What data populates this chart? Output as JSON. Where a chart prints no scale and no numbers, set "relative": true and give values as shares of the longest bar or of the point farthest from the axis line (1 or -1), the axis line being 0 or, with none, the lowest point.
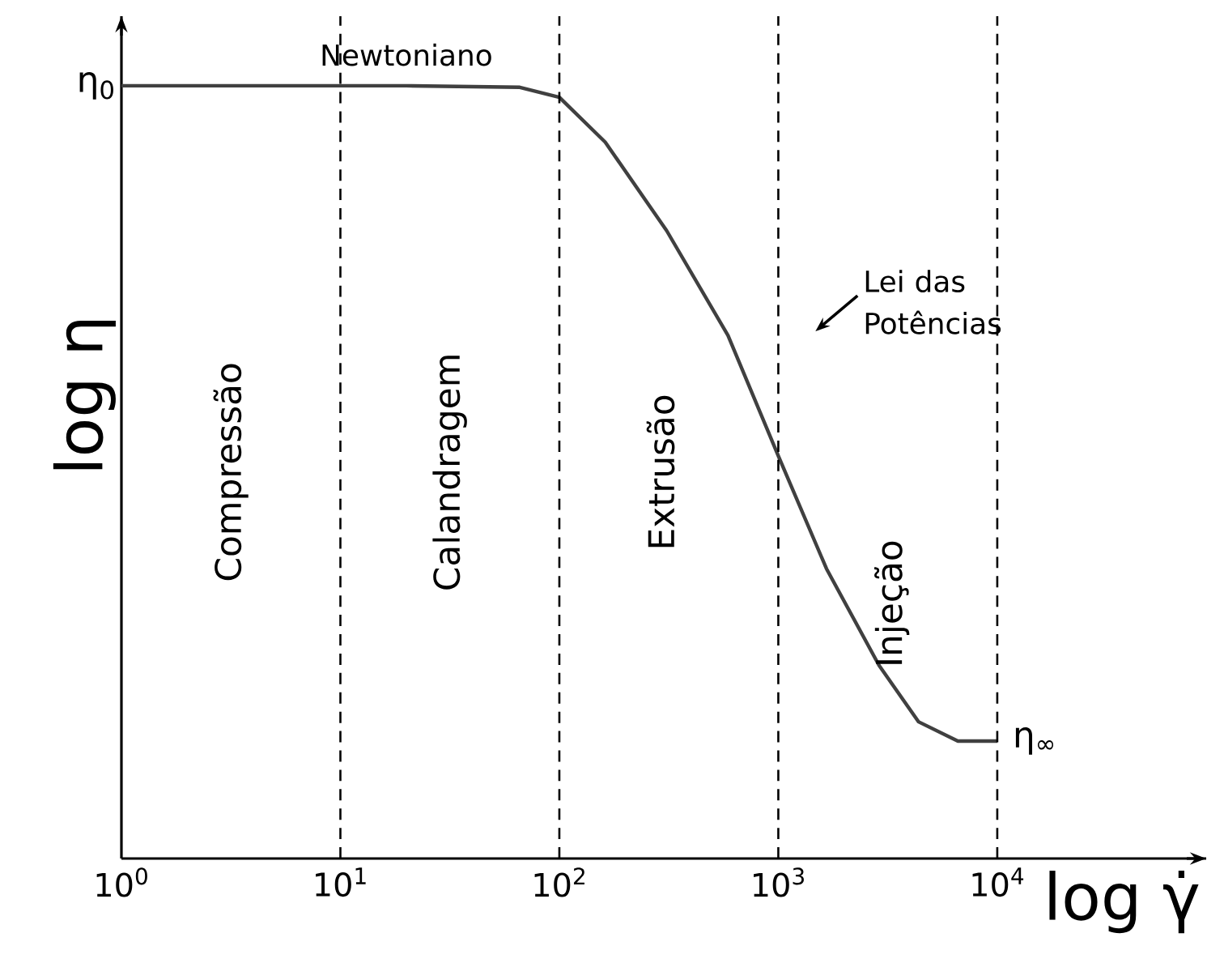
{
  "chart_data": {
    "type": "line",
    "relative": true,
    "log": "x",
    "tick_labels": "x",
    "xlabel": "log γ̇",
    "ylabel": "log η",
    "xlim": [
      1,
      90000
    ],
    "xticks": [
      {
        "value": 1,
        "label": "10$^{0}$"
      },
      {
        "value": 10,
        "label": "10$^{1}$"
      },
      {
        "value": 100,
        "label": "10$^{2}$"
      },
      {
        "value": 1000,
        "label": "10$^{3}$"
      },
      {
        "value": 10000,
        "label": "10$^{4}$"
      }
    ],
    "series": [
      {
        "color": "#404040",
        "x": [
          1,
          10,
          20,
          66,
          100,
          162,
          309,
          589,
          1000,
          1660,
          2884,
          4365,
          6607,
          10000
        ],
        "values": [
          1,
          1,
          1,
          0.998,
          0.985,
          0.927,
          0.8125,
          0.677,
          0.521,
          0.375,
          0.25,
          0.177,
          0.152,
          0.152
        ]
      }
    ],
    "ref_lines": [
      {
        "axis": "x",
        "value": 10,
        "line_style": "dashed"
      },
      {
        "axis": "x",
        "value": 100,
        "line_style": "dashed"
      },
      {
        "axis": "x",
        "value": 1000,
        "line_style": "dashed"
      },
      {
        "axis": "x",
        "value": 10000,
        "line_style": "dashed"
      }
    ],
    "annotations": [
      "Newtoniano",
      "Lei das Potências",
      "Compressão",
      "Calandragem",
      "Extrusão",
      "Injeção",
      {
        "text": "η$_{0}$",
        "x": 1,
        "y": 1
      },
      {
        "text": "η$_{∞}$",
        "x": 10000,
        "y": 0.152
      }
    ]
  }
}
